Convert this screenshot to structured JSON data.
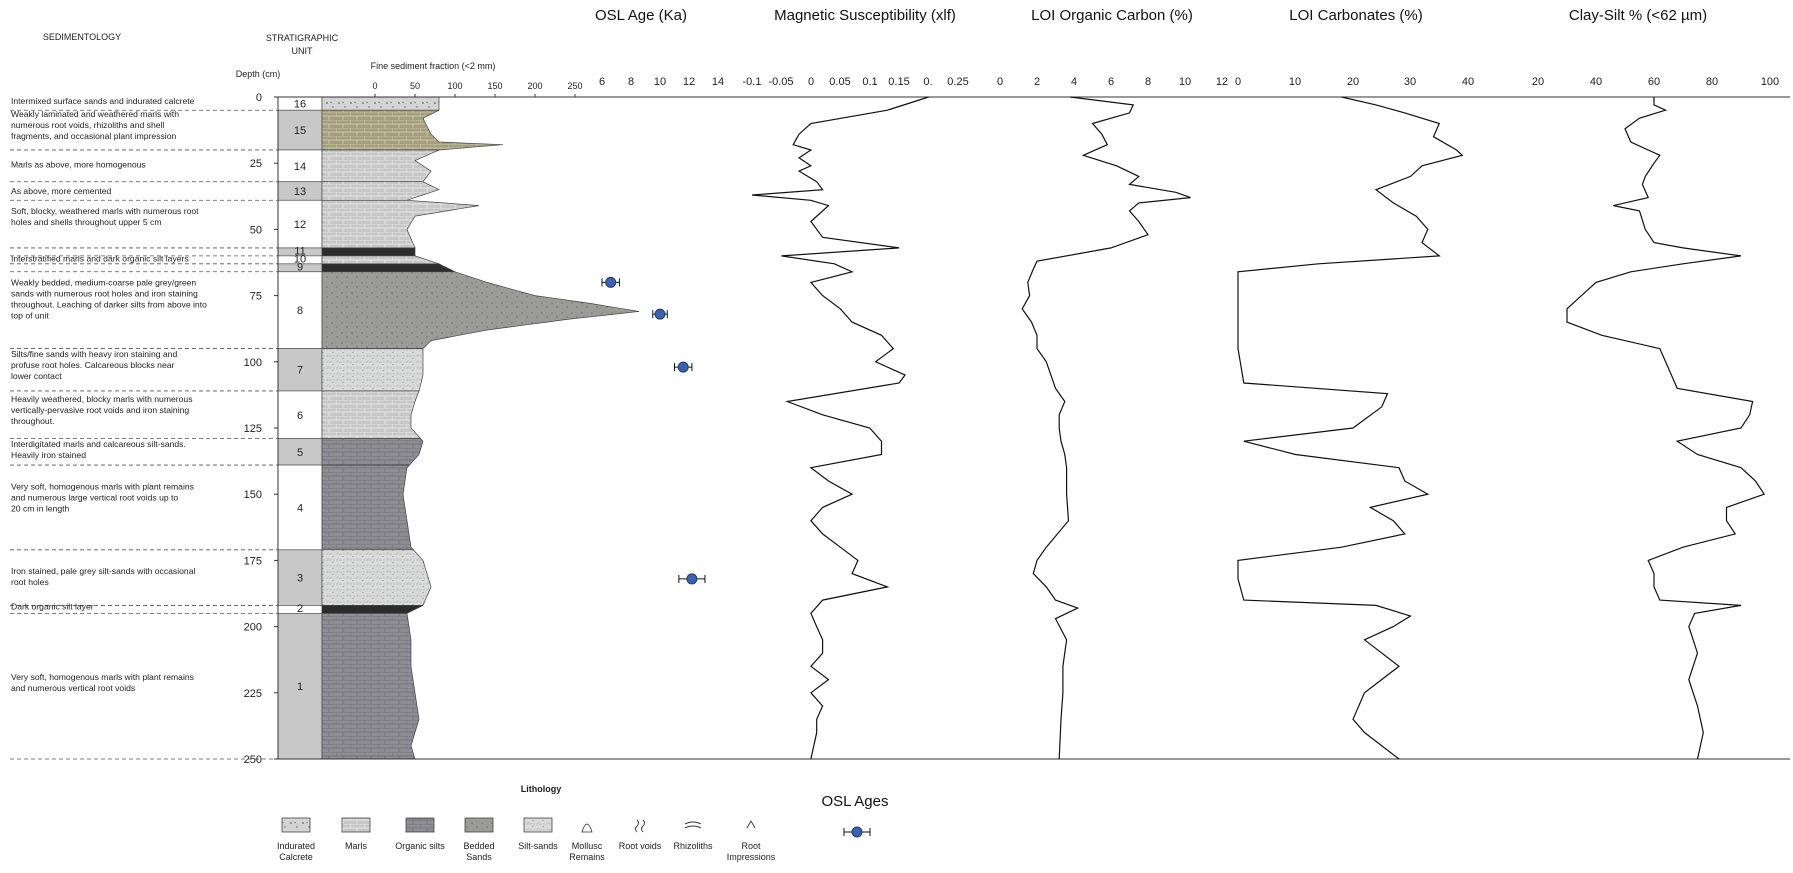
{
  "headers": {
    "sedimentology": "SEDIMENTOLOGY",
    "strat_unit_line1": "STRATIGRAPHIC",
    "strat_unit_line2": "UNIT",
    "depth_label": "Depth (cm)",
    "fine_fraction_label": "Fine sediment fraction (<2 mm)"
  },
  "depth_ticks": [
    "0",
    "25",
    "50",
    "75",
    "100",
    "125",
    "150",
    "175",
    "200",
    "225",
    "250"
  ],
  "fine_ticks": [
    "0",
    "50",
    "100",
    "150",
    "200",
    "250"
  ],
  "units": [
    {
      "label": "16",
      "top": 0,
      "bottom": 5,
      "shade": "white",
      "lith": "calcrete"
    },
    {
      "label": "15",
      "top": 5,
      "bottom": 20,
      "shade": "grey",
      "lith": "marl-olive"
    },
    {
      "label": "14",
      "top": 20,
      "bottom": 32,
      "shade": "white",
      "lith": "marl"
    },
    {
      "label": "13",
      "top": 32,
      "bottom": 39,
      "shade": "grey",
      "lith": "marl"
    },
    {
      "label": "12",
      "top": 39,
      "bottom": 57,
      "shade": "white",
      "lith": "marl"
    },
    {
      "label": "11",
      "top": 57,
      "bottom": 60,
      "shade": "grey",
      "lith": "organic-dark"
    },
    {
      "label": "10",
      "top": 60,
      "bottom": 63,
      "shade": "white",
      "lith": "marl"
    },
    {
      "label": "9",
      "top": 63,
      "bottom": 66,
      "shade": "grey",
      "lith": "organic-dark"
    },
    {
      "label": "8",
      "top": 66,
      "bottom": 95,
      "shade": "white",
      "lith": "bedded"
    },
    {
      "label": "7",
      "top": 95,
      "bottom": 111,
      "shade": "grey",
      "lith": "siltsand"
    },
    {
      "label": "6",
      "top": 111,
      "bottom": 129,
      "shade": "white",
      "lith": "marl"
    },
    {
      "label": "5",
      "top": 129,
      "bottom": 139,
      "shade": "grey",
      "lith": "organic"
    },
    {
      "label": "4",
      "top": 139,
      "bottom": 171,
      "shade": "white",
      "lith": "organic"
    },
    {
      "label": "3",
      "top": 171,
      "bottom": 192,
      "shade": "grey",
      "lith": "siltsand"
    },
    {
      "label": "2",
      "top": 192,
      "bottom": 195,
      "shade": "white",
      "lith": "organic-dark"
    },
    {
      "label": "1",
      "top": 195,
      "bottom": 250,
      "shade": "grey",
      "lith": "organic"
    }
  ],
  "descriptions": [
    {
      "depth": 1.5,
      "lines": [
        "Intermixed surface sands and indurated calcrete"
      ]
    },
    {
      "depth": 6.5,
      "lines": [
        "Weakly laminated and weathered marls with",
        "numerous root voids, rhizoliths and shell",
        "fragments, and occasional plant impression"
      ]
    },
    {
      "depth": 25.5,
      "lines": [
        "Marls as above, more homogenous"
      ]
    },
    {
      "depth": 35.5,
      "lines": [
        "As above, more cemented"
      ]
    },
    {
      "depth": 43,
      "lines": [
        "Soft, blocky, weathered marls with numerous root",
        "holes and shells throughout upper 5 cm"
      ]
    },
    {
      "depth": 61,
      "lines": [
        "Interstratified marls and dark organic silt layers"
      ]
    },
    {
      "depth": 70,
      "lines": [
        "Weakly bedded, medium-coarse pale grey/green",
        "sands with numerous root holes and iron staining",
        "throughout. Leaching of darker silts from above into",
        "top of unit"
      ]
    },
    {
      "depth": 97,
      "lines": [
        "Silts/fine sands with heavy iron staining and",
        "profuse root holes. Calcareous blocks near",
        "lower contact"
      ]
    },
    {
      "depth": 114,
      "lines": [
        "Heavily weathered, blocky marls with numerous",
        "vertically-pervasive root voids and iron staining",
        "throughout."
      ]
    },
    {
      "depth": 131,
      "lines": [
        "Interdigitated marls and calcareous silt-sands.",
        "Heavily iron stained"
      ]
    },
    {
      "depth": 147,
      "lines": [
        "Very soft, homogenous marls with plant remains",
        "and numerous large vertical root voids up to",
        "20 cm in length"
      ]
    },
    {
      "depth": 179,
      "lines": [
        "Iron stained, pale grey silt-sands with occasional",
        "root holes"
      ]
    },
    {
      "depth": 192.5,
      "lines": [
        "Dark organic silt layer"
      ]
    },
    {
      "depth": 219,
      "lines": [
        "Very soft, homogenous marls with plant remains",
        "and numerous vertical root voids"
      ]
    }
  ],
  "legend": {
    "title": "Lithology",
    "items": [
      {
        "kind": "calcrete",
        "lines": [
          "Indurated",
          "Calcrete"
        ]
      },
      {
        "kind": "marl",
        "lines": [
          "Marls"
        ]
      },
      {
        "kind": "organic",
        "lines": [
          "Organic silts"
        ]
      },
      {
        "kind": "bedded",
        "lines": [
          "Bedded",
          "Sands"
        ]
      },
      {
        "kind": "siltsand",
        "lines": [
          "Silt-sands"
        ]
      },
      {
        "kind": "mollusc",
        "lines": [
          "Mollusc",
          "Remains"
        ]
      },
      {
        "kind": "rootvoid",
        "lines": [
          "Root voids"
        ]
      },
      {
        "kind": "rhizolith",
        "lines": [
          "Rhizoliths"
        ]
      },
      {
        "kind": "rootimp",
        "lines": [
          "Root",
          "Impressions"
        ]
      }
    ],
    "osl_title": "OSL Ages"
  },
  "colors": {
    "marl": "#c7c7c7",
    "marl_olive": "#a69f7e",
    "organic": "#8e8e94",
    "organic_dark": "#2c2c2c",
    "bedded": "#9b9b98",
    "siltsand": "#dadada",
    "calcrete": "#cfcfcf",
    "unit_grey": "#c8c8c8",
    "osl_point": "#3a62b0"
  },
  "chart_data": [
    {
      "type": "line",
      "title": "OSL Age (Ka)",
      "xticks": [
        "6",
        "8",
        "10",
        "12",
        "14"
      ],
      "xlim": [
        4,
        15
      ],
      "ylim": [
        0,
        250
      ],
      "points": [
        {
          "age": 6.6,
          "err": 0.6,
          "depth": 70
        },
        {
          "age": 10.0,
          "err": 0.5,
          "depth": 82
        },
        {
          "age": 11.6,
          "err": 0.6,
          "depth": 102
        },
        {
          "age": 12.2,
          "err": 0.9,
          "depth": 182
        }
      ]
    },
    {
      "type": "line",
      "title": "Magnetic Susceptibility (xlf)",
      "xticks": [
        "-0.1",
        "-0.05",
        "0",
        "0.05",
        "0.1",
        "0.15",
        "0.",
        "0.25"
      ],
      "xlim": [
        -0.1,
        0.25
      ],
      "ylim": [
        0,
        250
      ],
      "depth": [
        0,
        5,
        10,
        14,
        18,
        20,
        23,
        26,
        28,
        32,
        35,
        37,
        39,
        41,
        47,
        53,
        57,
        60,
        63,
        66,
        70,
        75,
        80,
        85,
        90,
        95,
        100,
        105,
        108,
        115,
        120,
        125,
        130,
        135,
        140,
        145,
        150,
        155,
        160,
        165,
        170,
        175,
        180,
        185,
        190,
        195,
        200,
        205,
        210,
        215,
        220,
        225,
        230,
        235,
        240,
        250
      ],
      "x": [
        0.2,
        0.13,
        0.0,
        -0.02,
        -0.03,
        0.0,
        -0.02,
        0.0,
        -0.02,
        0.01,
        0.02,
        -0.1,
        0.0,
        0.03,
        0.0,
        0.02,
        0.15,
        -0.05,
        0.04,
        0.07,
        0.0,
        0.02,
        0.05,
        0.07,
        0.12,
        0.14,
        0.11,
        0.16,
        0.15,
        -0.04,
        0.02,
        0.1,
        0.12,
        0.12,
        0.0,
        0.03,
        0.07,
        0.02,
        0.0,
        0.02,
        0.05,
        0.08,
        0.07,
        0.13,
        0.02,
        0.0,
        0.01,
        0.02,
        0.02,
        0.0,
        0.03,
        0.0,
        0.02,
        0.01,
        0.01,
        0.0
      ]
    },
    {
      "type": "line",
      "title": "LOI Organic Carbon (%)",
      "xticks": [
        "0",
        "2",
        "4",
        "6",
        "8",
        "10",
        "12"
      ],
      "xlim": [
        0,
        12
      ],
      "ylim": [
        0,
        250
      ],
      "depth": [
        0,
        3,
        6,
        10,
        14,
        18,
        22,
        26,
        30,
        33,
        36,
        38,
        40,
        43,
        47,
        52,
        57,
        62,
        65,
        70,
        75,
        80,
        85,
        90,
        95,
        100,
        110,
        115,
        120,
        125,
        130,
        135,
        140,
        150,
        160,
        170,
        175,
        180,
        185,
        190,
        193,
        197,
        205,
        215,
        225,
        235,
        250
      ],
      "x": [
        3.8,
        7.2,
        7.0,
        5.0,
        5.5,
        5.8,
        4.5,
        6.3,
        7.5,
        7.0,
        9.5,
        10.3,
        7.5,
        7.0,
        7.5,
        8.0,
        6.0,
        2.0,
        1.8,
        1.5,
        1.6,
        1.2,
        1.7,
        2.0,
        2.0,
        2.5,
        3.0,
        3.5,
        3.2,
        3.2,
        3.3,
        3.5,
        3.6,
        3.6,
        3.7,
        2.5,
        2.0,
        1.8,
        2.5,
        3.0,
        4.2,
        3.0,
        3.6,
        3.4,
        3.4,
        3.3,
        3.2
      ]
    },
    {
      "type": "line",
      "title": "LOI Carbonates (%)",
      "xticks": [
        "0",
        "10",
        "20",
        "30",
        "40"
      ],
      "xlim": [
        0,
        40
      ],
      "ylim": [
        0,
        250
      ],
      "depth": [
        0,
        3,
        6,
        10,
        15,
        20,
        22,
        26,
        30,
        35,
        40,
        45,
        50,
        55,
        60,
        63,
        66,
        80,
        95,
        108,
        112,
        117,
        125,
        130,
        135,
        140,
        145,
        150,
        155,
        160,
        165,
        170,
        175,
        182,
        190,
        192,
        196,
        200,
        205,
        215,
        225,
        235,
        240,
        250
      ],
      "x": [
        18,
        24,
        29,
        35,
        34,
        38,
        39,
        32,
        30,
        24,
        27,
        31,
        33,
        32,
        35,
        14,
        0,
        0,
        0,
        1,
        26,
        25,
        20,
        1,
        10,
        28,
        29,
        33,
        23,
        27,
        29,
        18,
        0,
        0,
        1,
        24,
        30,
        27,
        22,
        28,
        22,
        20,
        22,
        28
      ]
    },
    {
      "type": "line",
      "title": "Clay-Silt % (<62 µm)",
      "xticks": [
        "20",
        "40",
        "60",
        "80",
        "100"
      ],
      "xlim": [
        15,
        100
      ],
      "ylim": [
        0,
        250
      ],
      "depth": [
        0,
        3,
        5,
        8,
        12,
        17,
        22,
        25,
        30,
        33,
        38,
        41,
        43,
        50,
        55,
        57,
        60,
        63,
        66,
        70,
        75,
        80,
        85,
        90,
        95,
        100,
        105,
        110,
        115,
        120,
        125,
        130,
        135,
        140,
        145,
        150,
        155,
        160,
        165,
        170,
        175,
        180,
        185,
        190,
        192,
        195,
        200,
        210,
        220,
        230,
        240,
        250
      ],
      "x": [
        60,
        60,
        64,
        55,
        50,
        52,
        62,
        60,
        57,
        56,
        58,
        46,
        55,
        57,
        60,
        70,
        90,
        70,
        52,
        40,
        35,
        30,
        30,
        42,
        62,
        64,
        66,
        68,
        94,
        93,
        90,
        68,
        75,
        90,
        95,
        98,
        85,
        85,
        88,
        70,
        58,
        60,
        60,
        62,
        90,
        74,
        72,
        75,
        72,
        75,
        77,
        75
      ]
    }
  ]
}
